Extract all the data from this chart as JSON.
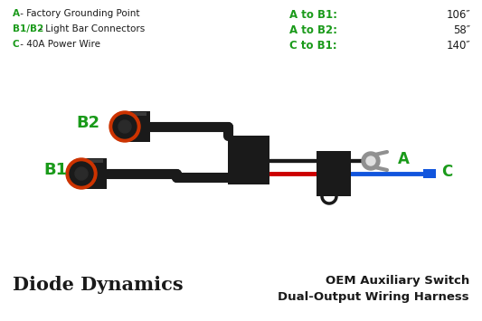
{
  "bg_color": "#ffffff",
  "green": "#1a9a1a",
  "black": "#1a1a1a",
  "dark_gray": "#2a2a2a",
  "red": "#cc0000",
  "blue": "#1155dd",
  "gray": "#909090",
  "orange": "#cc3300",
  "legend_lines": [
    {
      "key": "A",
      "desc": " - Factory Grounding Point"
    },
    {
      "key": "B1/B2",
      "desc": " - Light Bar Connectors"
    },
    {
      "key": "C",
      "desc": " - 40A Power Wire"
    }
  ],
  "measurements": [
    {
      "label": "A to B1:",
      "value": "106″"
    },
    {
      "label": "A to B2:",
      "value": "58″"
    },
    {
      "label": "C to B1:",
      "value": "140″"
    }
  ],
  "brand": "Diode Dynamics",
  "product_line1": "OEM Auxiliary Switch",
  "product_line2": "Dual-Output Wiring Harness"
}
